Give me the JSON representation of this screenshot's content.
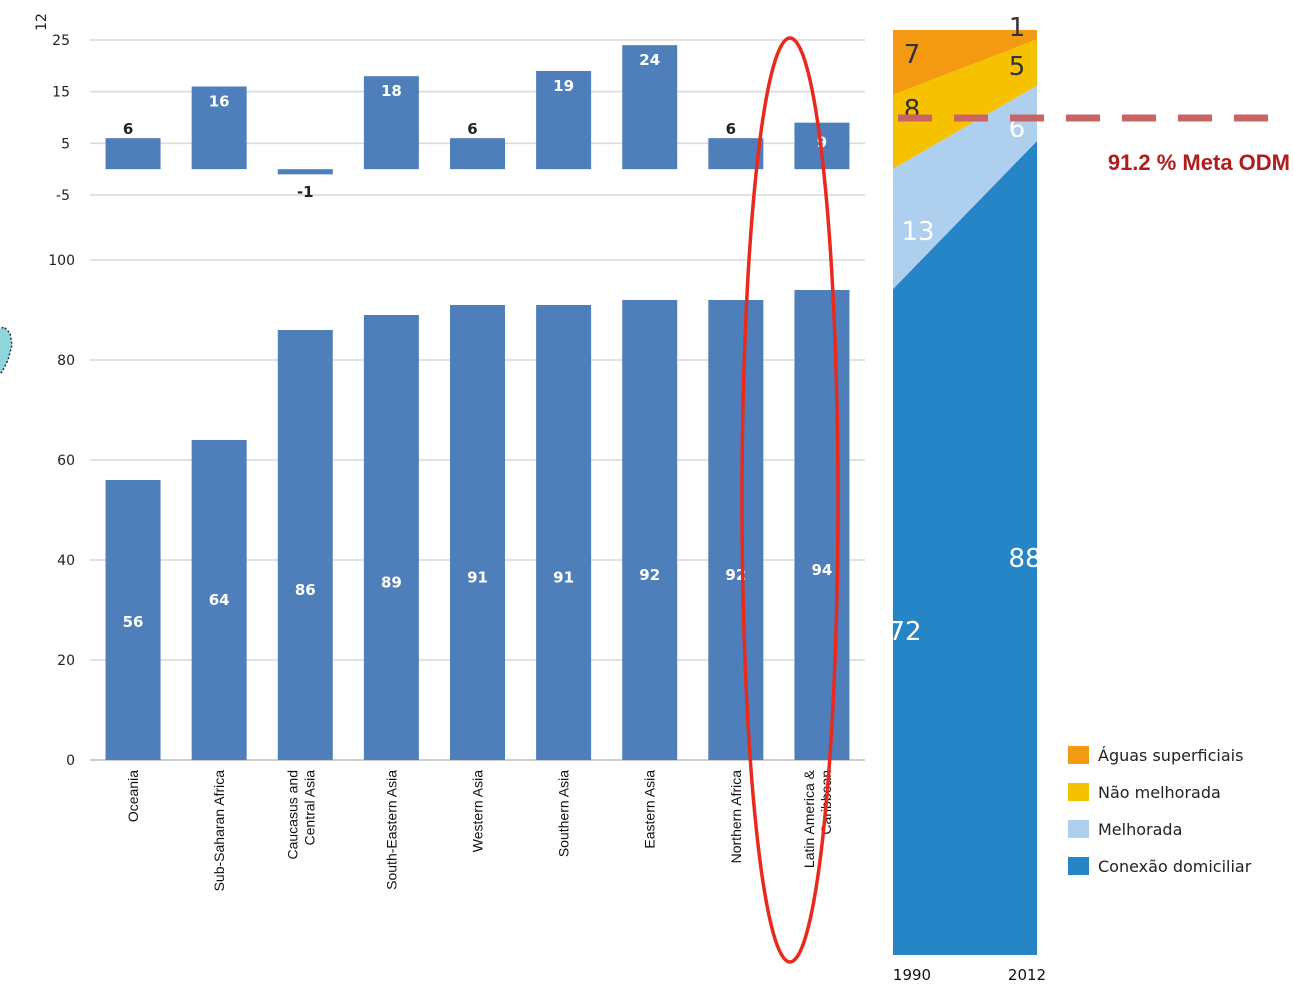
{
  "chart_data": [
    {
      "type": "bar",
      "categories": [
        "Oceania",
        "Sub-Saharan Africa",
        "Caucasus and Central Asia",
        "South-Eastern Asia",
        "Western Asia",
        "Southern Asia",
        "Eastern Asia",
        "Northern Africa",
        "Latin America & Caribbean"
      ],
      "values": [
        6,
        16,
        -1,
        18,
        6,
        19,
        24,
        6,
        9
      ],
      "ylim": [
        -5,
        25
      ],
      "yticks": [
        25,
        15,
        5,
        -5
      ],
      "axis_fragment": "12",
      "grid": true
    },
    {
      "type": "bar",
      "categories": [
        "Oceania",
        "Sub-Saharan Africa",
        "Caucasus and Central Asia",
        "South-Eastern Asia",
        "Western Asia",
        "Southern Asia",
        "Eastern Asia",
        "Northern Africa",
        "Latin America & Caribbean"
      ],
      "values": [
        56,
        64,
        86,
        89,
        91,
        91,
        92,
        92,
        94
      ],
      "ylim": [
        0,
        100
      ],
      "yticks": [
        100,
        80,
        60,
        40,
        20,
        0
      ],
      "grid": true,
      "highlight": "Latin America & Caribbean",
      "highlight_color": "#e8291c"
    },
    {
      "type": "area",
      "x": [
        "1990",
        "2012"
      ],
      "series": [
        {
          "name": "Conexão domiciliar",
          "values": [
            72,
            88
          ],
          "color": "#2585c7"
        },
        {
          "name": "Melhorada",
          "values": [
            13,
            6
          ],
          "color": "#aed0ee"
        },
        {
          "name": "Não melhorada",
          "values": [
            8,
            5
          ],
          "color": "#f6c200"
        },
        {
          "name": "Águas superficiais",
          "values": [
            7,
            1
          ],
          "color": "#f39a12"
        }
      ],
      "ylim": [
        0,
        100
      ],
      "legend_position": "bottom-right",
      "target_line": {
        "value": 91.2,
        "label": "91.2 % Meta ODM",
        "color": "#c86464",
        "label_color": "#b01d1d"
      }
    }
  ]
}
